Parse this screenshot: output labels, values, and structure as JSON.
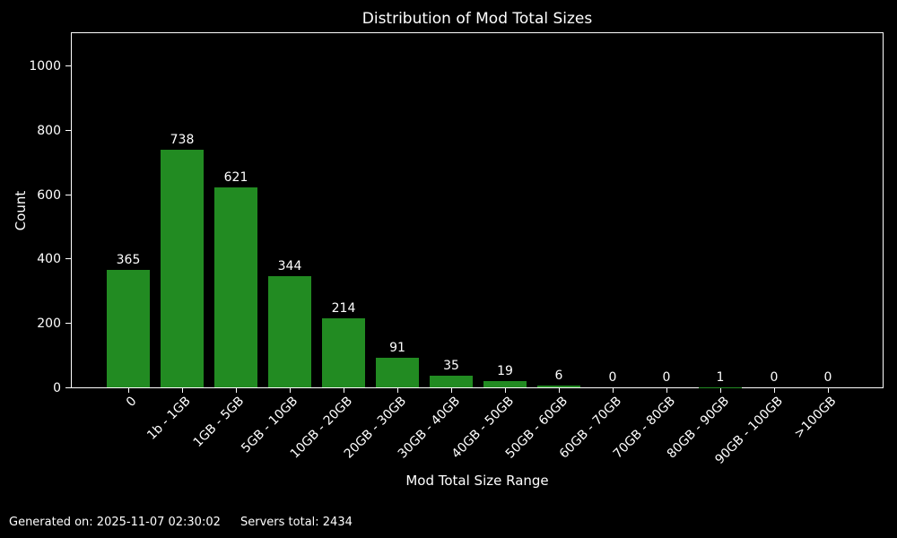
{
  "window": {
    "background": "#000000",
    "text_color": "#ffffff"
  },
  "chart_data": {
    "type": "bar",
    "title": "Distribution of Mod Total Sizes",
    "xlabel": "Mod Total Size Range",
    "ylabel": "Count",
    "categories": [
      "0",
      "1b - 1GB",
      "1GB - 5GB",
      "5GB - 10GB",
      "10GB - 20GB",
      "20GB - 30GB",
      "30GB - 40GB",
      "40GB - 50GB",
      "50GB - 60GB",
      "60GB - 70GB",
      "70GB - 80GB",
      "80GB - 90GB",
      "90GB - 100GB",
      ">100GB"
    ],
    "values": [
      365,
      738,
      621,
      344,
      214,
      91,
      35,
      19,
      6,
      0,
      0,
      1,
      0,
      0
    ],
    "bar_labels": [
      365,
      738,
      621,
      344,
      214,
      91,
      35,
      19,
      6,
      0,
      0,
      1,
      0,
      0
    ],
    "yticks": [
      0,
      200,
      400,
      600,
      800,
      1000
    ],
    "ylim": [
      0,
      1100
    ],
    "xtick_rotation": 45,
    "grid": false,
    "legend": "none",
    "bar_color": "#228B22",
    "background": "#000000",
    "text_color": "#ffffff",
    "spine_color": "#ffffff"
  },
  "footer": {
    "generated_on": "Generated on: 2025-11-07 02:30:02",
    "servers_total": "Servers total: 2434"
  }
}
